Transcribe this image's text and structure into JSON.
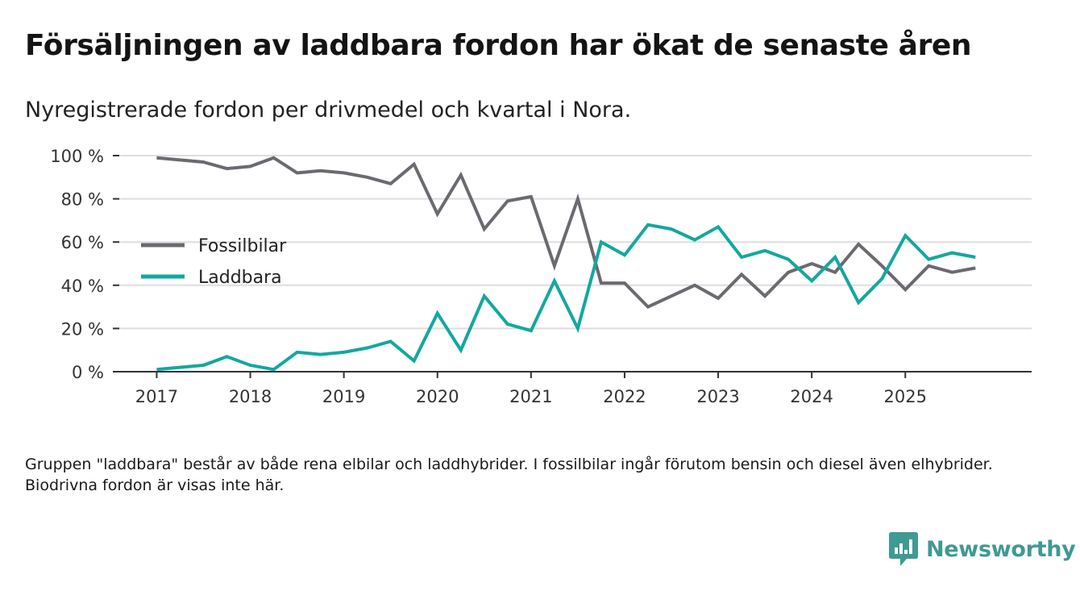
{
  "title": "Försäljningen av laddbara fordon har ökat de senaste åren",
  "subtitle": "Nyregistrerade fordon per drivmedel och kvartal i Nora.",
  "note": "Gruppen \"laddbara\" består av både rena elbilar och laddhybrider. I fossilbilar ingår förutom bensin och diesel även elhybrider. Biodrivna fordon är visas inte här.",
  "brand": {
    "name": "Newsworthy",
    "color": "#3f9a93"
  },
  "chart_data": {
    "type": "line",
    "title": "Försäljningen av laddbara fordon har ökat de senaste åren",
    "subtitle": "Nyregistrerade fordon per drivmedel och kvartal i Nora.",
    "xlabel": "",
    "ylabel": "",
    "x": [
      2017.0,
      2017.25,
      2017.5,
      2017.75,
      2018.0,
      2018.25,
      2018.5,
      2018.75,
      2019.0,
      2019.25,
      2019.5,
      2019.75,
      2020.0,
      2020.25,
      2020.5,
      2020.75,
      2021.0,
      2021.25,
      2021.5,
      2021.75,
      2022.0,
      2022.25,
      2022.5,
      2022.75,
      2023.0,
      2023.25,
      2023.5,
      2023.75,
      2024.0,
      2024.25,
      2024.5,
      2024.75,
      2025.0,
      2025.25,
      2025.5,
      2025.75
    ],
    "xlim": [
      2016.6,
      2026.35
    ],
    "ylim": [
      0,
      100
    ],
    "x_ticks": [
      2017,
      2018,
      2019,
      2020,
      2021,
      2022,
      2023,
      2024,
      2025
    ],
    "x_tick_labels": [
      "2017",
      "2018",
      "2019",
      "2020",
      "2021",
      "2022",
      "2023",
      "2024",
      "2025"
    ],
    "y_ticks": [
      0,
      20,
      40,
      60,
      80,
      100
    ],
    "y_tick_labels": [
      "0 %",
      "20 %",
      "40 %",
      "60 %",
      "80 %",
      "100 %"
    ],
    "grid": true,
    "legend_position": "center-left",
    "series": [
      {
        "name": "Fossilbilar",
        "color": "#6b6a70",
        "values": [
          99,
          98,
          97,
          94,
          95,
          99,
          92,
          93,
          92,
          90,
          87,
          96,
          73,
          91,
          66,
          79,
          81,
          49,
          80,
          41,
          41,
          30,
          35,
          40,
          34,
          45,
          35,
          46,
          50,
          46,
          59,
          49,
          38,
          49,
          46,
          48
        ]
      },
      {
        "name": "Laddbara",
        "color": "#12a89e",
        "values": [
          1,
          2,
          3,
          7,
          3,
          1,
          9,
          8,
          9,
          11,
          14,
          5,
          27,
          10,
          35,
          22,
          19,
          42,
          20,
          60,
          54,
          68,
          66,
          61,
          67,
          53,
          56,
          52,
          42,
          53,
          32,
          43,
          63,
          52,
          55,
          53
        ]
      }
    ]
  }
}
